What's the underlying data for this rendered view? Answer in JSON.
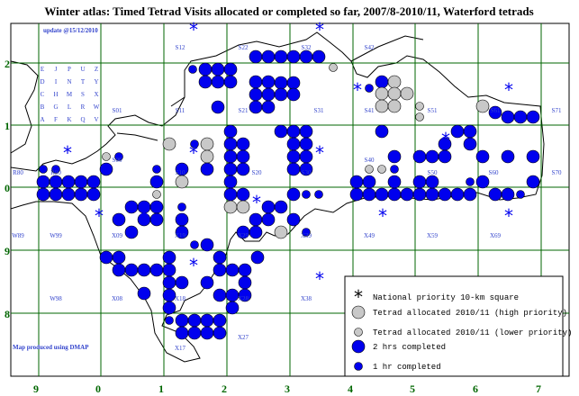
{
  "title": "Winter atlas: Timed Tetrad Visits allocated or completed so far, 2007/8-2010/11, Waterford tetrads",
  "update_note": "update @15/12/2010",
  "credit": "Map produced using DMAP",
  "x_axis_labels": [
    "9",
    "0",
    "1",
    "2",
    "3",
    "4",
    "5",
    "6",
    "7"
  ],
  "y_axis_labels": [
    "2",
    "1",
    "0",
    "9",
    "8"
  ],
  "letter_grid": [
    [
      "E",
      "J",
      "P",
      "U",
      "Z"
    ],
    [
      "D",
      "I",
      "N",
      "T",
      "Y"
    ],
    [
      "C",
      "H",
      "M",
      "S",
      "X"
    ],
    [
      "B",
      "G",
      "L",
      "R",
      "W"
    ],
    [
      "A",
      "F",
      "K",
      "Q",
      "V"
    ]
  ],
  "square_labels": [
    "S12",
    "S22",
    "S32",
    "S42",
    "S01",
    "S11",
    "S21",
    "S31",
    "S41",
    "S51",
    "S61",
    "S71",
    "R80",
    "R90",
    "S00",
    "S10",
    "S20",
    "S30",
    "S40",
    "S50",
    "S60",
    "S70",
    "W89",
    "W99",
    "X09",
    "X19",
    "X29",
    "X39",
    "X49",
    "X59",
    "X69",
    "W98",
    "X08",
    "X18",
    "X28",
    "X38",
    "X17",
    "X27"
  ],
  "legend": [
    "National priority 10-km square",
    "Tetrad allocated 2010/11 (high priority)",
    "Tetrad allocated 2010/11 (lower priority)",
    "2 hrs completed",
    "1 hr completed"
  ]
}
